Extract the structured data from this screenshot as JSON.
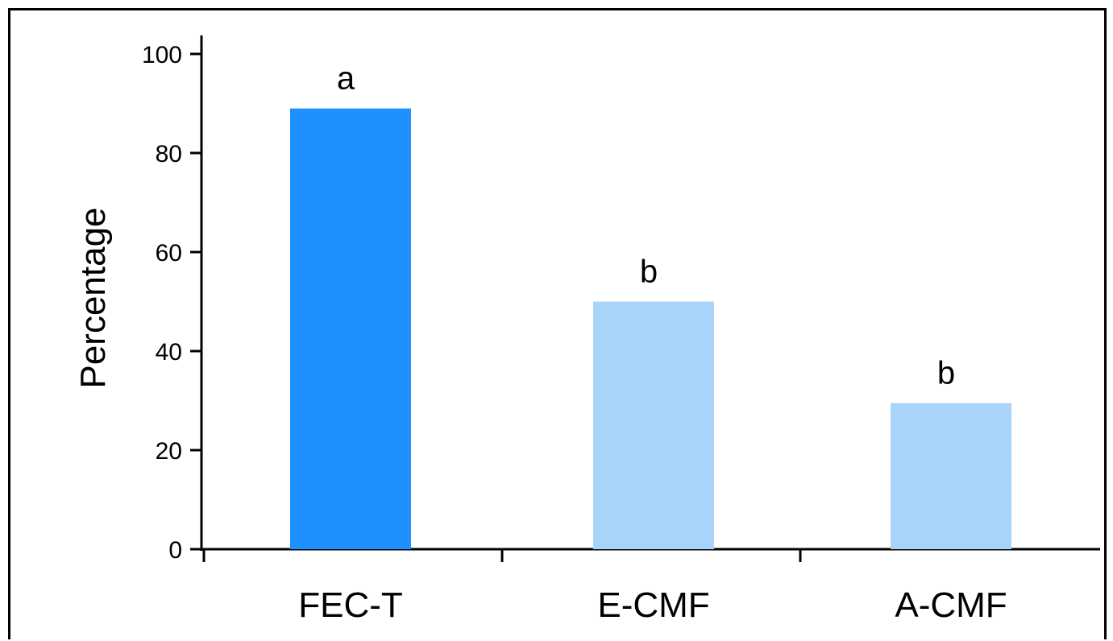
{
  "chart_data": {
    "type": "bar",
    "categories": [
      "FEC-T",
      "E-CMF",
      "A-CMF"
    ],
    "values": [
      89,
      50,
      29.5
    ],
    "annotations": [
      "a",
      "b",
      "b"
    ],
    "bar_colors": [
      "#1e90ff",
      "#a8d4fa",
      "#a8d4fa"
    ],
    "title": "",
    "xlabel": "",
    "ylabel": "Percentage",
    "ylim": [
      0,
      100
    ],
    "yticks": [
      0,
      20,
      40,
      60,
      80,
      100
    ],
    "grid": false,
    "legend": "none"
  }
}
